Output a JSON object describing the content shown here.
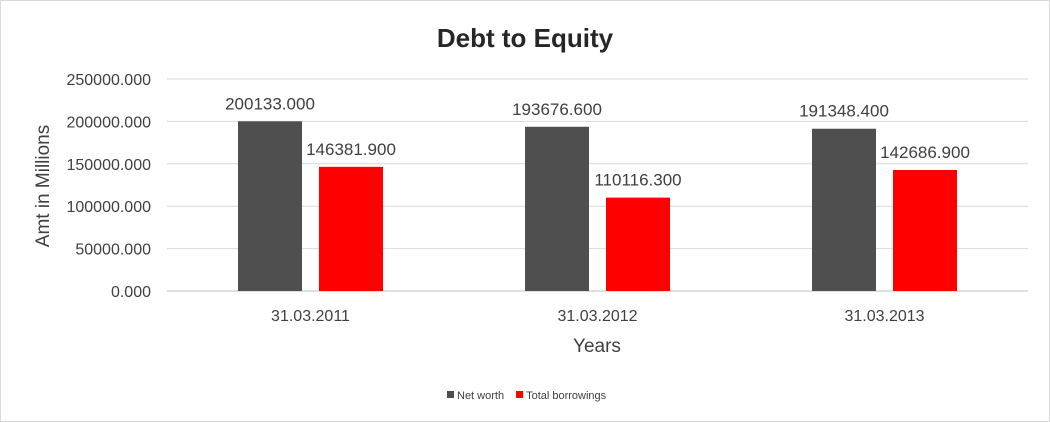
{
  "chart_data": {
    "type": "bar",
    "title": "Debt to Equity",
    "xlabel": "Years",
    "ylabel": "Amt in Millions",
    "categories": [
      "31.03.2011",
      "31.03.2012",
      "31.03.2013"
    ],
    "series": [
      {
        "name": "Net worth",
        "color": "#4f4f4f",
        "values": [
          200133.0,
          193676.6,
          191348.4
        ],
        "labels": [
          "200133.000",
          "193676.600",
          "191348.400"
        ]
      },
      {
        "name": "Total borrowings",
        "color": "#ff0000",
        "values": [
          146381.9,
          110116.3,
          142686.9
        ],
        "labels": [
          "146381.900",
          "110116.300",
          "142686.900"
        ]
      }
    ],
    "ylim": [
      0,
      250000
    ],
    "yticks": [
      0,
      50000,
      100000,
      150000,
      200000,
      250000
    ],
    "ytick_labels": [
      "0.000",
      "50000.000",
      "100000.000",
      "150000.000",
      "200000.000",
      "250000.000"
    ],
    "grid": true,
    "legend": "bottom"
  }
}
